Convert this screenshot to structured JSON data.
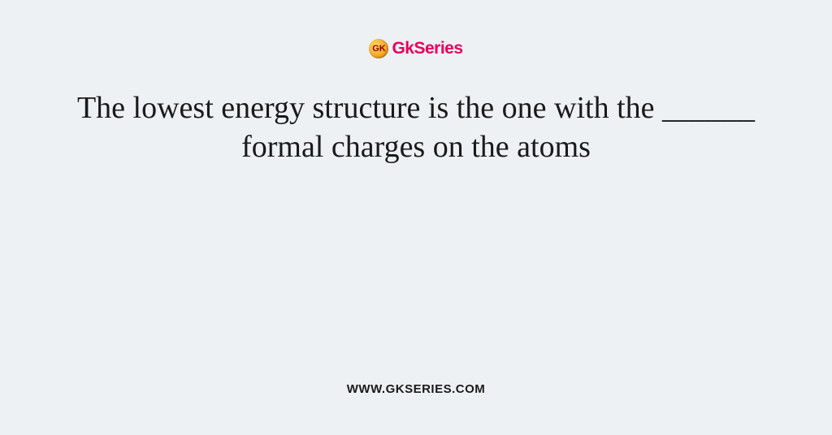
{
  "background_color": "#eef1f4",
  "logo": {
    "badge_text": "GK",
    "badge_bg_gradient_start": "#ffd966",
    "badge_bg_gradient_end": "#d48806",
    "badge_text_color": "#8b0000",
    "brand_prefix": "Gk",
    "brand_suffix": "Series",
    "brand_color": "#e6005c",
    "brand_fontsize": 21
  },
  "question": {
    "text": "The lowest energy structure is the one with the ______ formal charges on the atoms",
    "fontsize": 38,
    "color": "#1a1a1a",
    "font_family": "Georgia, serif"
  },
  "footer": {
    "url": "WWW.GKSERIES.COM",
    "fontsize": 15,
    "color": "#1a1a1a"
  }
}
